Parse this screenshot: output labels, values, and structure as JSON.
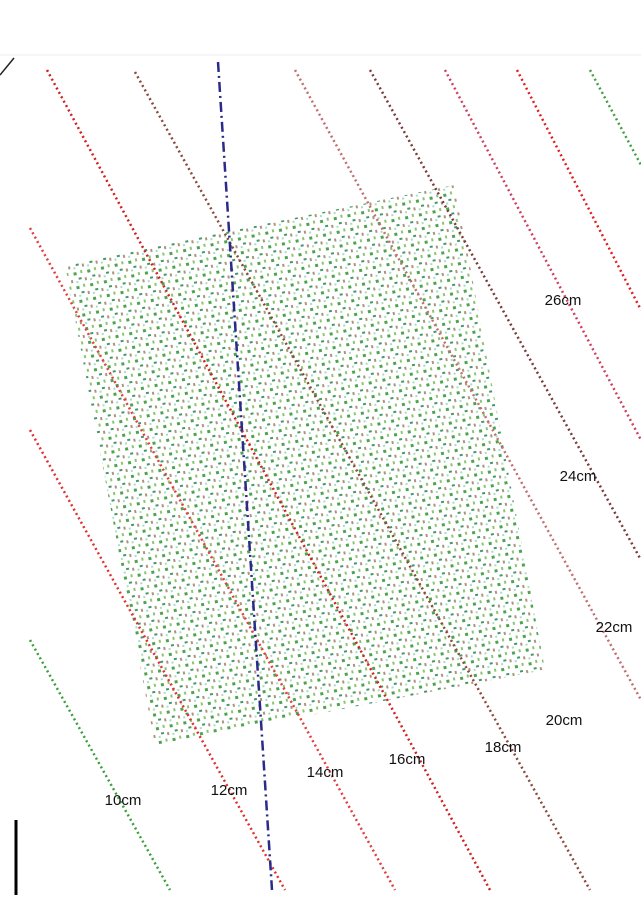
{
  "contour_labels": [
    "10cm",
    "12cm",
    "14cm",
    "16cm",
    "18cm",
    "20cm",
    "22cm",
    "24cm",
    "26cm"
  ]
}
